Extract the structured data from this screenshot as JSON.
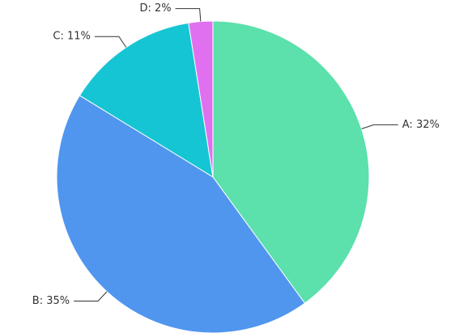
{
  "chart_data": {
    "type": "pie",
    "values": [
      32,
      35,
      11,
      2
    ],
    "value_labels": [
      "A: 32%",
      "B: 35%",
      "C: 11%",
      "D: 2%"
    ],
    "colors": [
      "#5ce0ac",
      "#5096ee",
      "#16c5d3",
      "#e070f0"
    ]
  }
}
